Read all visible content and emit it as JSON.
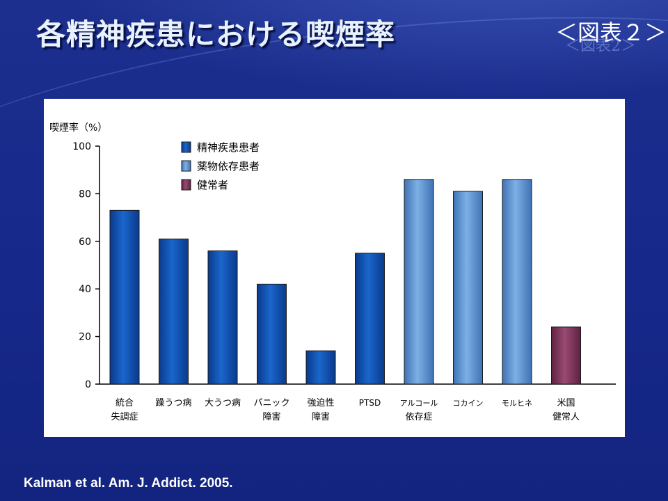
{
  "slide": {
    "title": "各精神疾患における喫煙率",
    "figure_label": "＜図表２＞",
    "figure_label_ghost": "＜図表2＞",
    "citation": "Kalman et al. Am. J.  Addict. 2005."
  },
  "colors": {
    "background": "#1a2f8a",
    "psychiatric": "#0d4fb0",
    "substance": "#5b93d2",
    "healthy": "#7e3558"
  },
  "chart_data": {
    "type": "bar",
    "ylabel": "喫煙率（%）",
    "ylim": [
      0,
      100
    ],
    "yticks": [
      0,
      20,
      40,
      60,
      80,
      100
    ],
    "grid": false,
    "legend_position": "top-left",
    "legend": [
      {
        "label": "精神疾患患者",
        "group": "psychiatric"
      },
      {
        "label": "薬物依存患者",
        "group": "substance"
      },
      {
        "label": "健常者",
        "group": "healthy"
      }
    ],
    "categories": [
      {
        "lines": [
          "統合",
          "失調症"
        ],
        "value": 73,
        "group": "psychiatric"
      },
      {
        "lines": [
          "躁うつ病"
        ],
        "value": 61,
        "group": "psychiatric"
      },
      {
        "lines": [
          "大うつ病"
        ],
        "value": 56,
        "group": "psychiatric"
      },
      {
        "lines": [
          "パニック",
          "障害"
        ],
        "value": 42,
        "group": "psychiatric"
      },
      {
        "lines": [
          "強迫性",
          "障害"
        ],
        "value": 14,
        "group": "psychiatric"
      },
      {
        "lines": [
          "PTSD"
        ],
        "value": 55,
        "group": "psychiatric"
      },
      {
        "lines": [
          "アルコール",
          "依存症"
        ],
        "value": 86,
        "group": "substance"
      },
      {
        "lines": [
          "コカイン"
        ],
        "value": 81,
        "group": "substance"
      },
      {
        "lines": [
          "モルヒネ"
        ],
        "value": 86,
        "group": "substance"
      },
      {
        "lines": [
          "米国",
          "健常人"
        ],
        "value": 24,
        "group": "healthy"
      }
    ]
  }
}
